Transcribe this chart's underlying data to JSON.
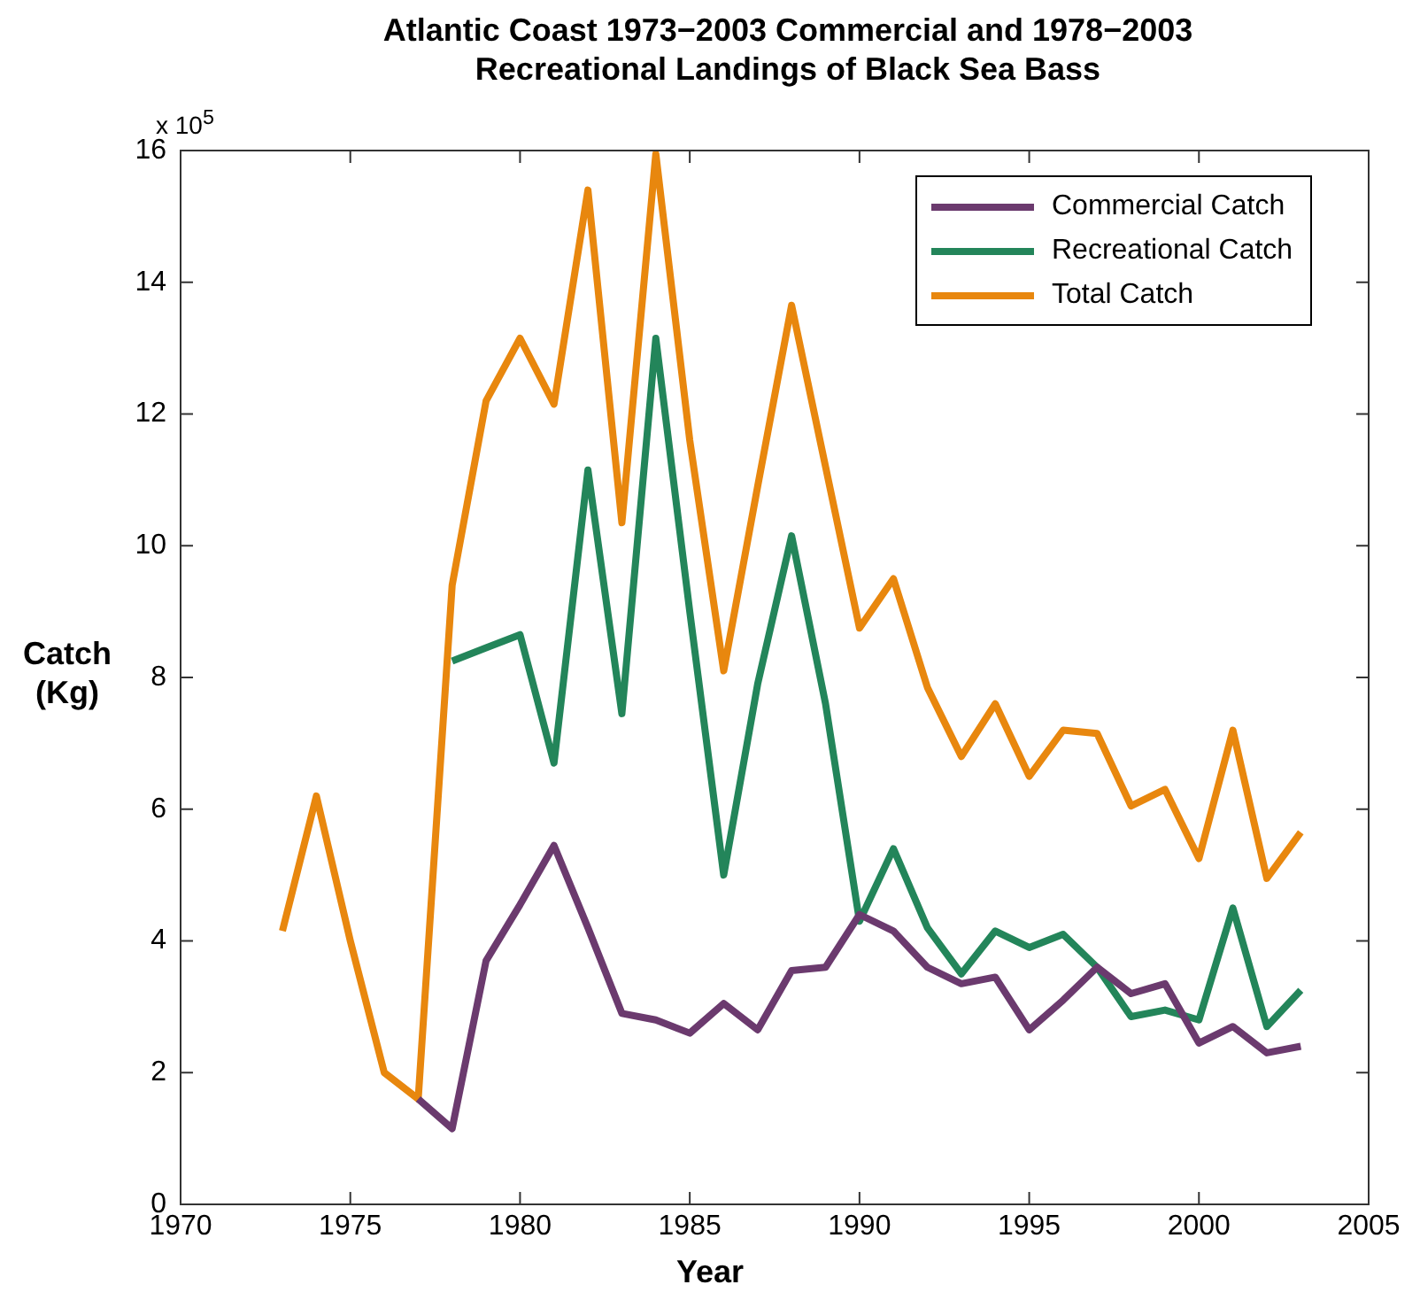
{
  "chart_data": {
    "type": "line",
    "title": "Atlantic Coast 1973−2003 Commercial and 1978−2003 Recreational Landings of Black Sea Bass",
    "xlabel": "Year",
    "ylabel": "Catch (Kg)",
    "annotations": [
      "x 10$^{5}$"
    ],
    "xlim": [
      1970,
      2005
    ],
    "xticks": [
      1970,
      1975,
      1980,
      1985,
      1990,
      1995,
      2000,
      2005
    ],
    "ylim": [
      0,
      16
    ],
    "yticks": [
      0,
      2,
      4,
      6,
      8,
      10,
      12,
      14,
      16
    ],
    "grid": false,
    "legend": "top right",
    "line_style": "solid",
    "marker": "none",
    "series": [
      {
        "name": "Commercial Catch",
        "color": "#6b3a6e",
        "x": [
          1977,
          1978,
          1979,
          1980,
          1981,
          1982,
          1983,
          1984,
          1985,
          1986,
          1987,
          1988,
          1989,
          1990,
          1991,
          1992,
          1993,
          1994,
          1995,
          1996,
          1997,
          1998,
          1999,
          2000,
          2001,
          2002,
          2003
        ],
        "values": [
          1.6,
          1.15,
          3.7,
          4.55,
          5.45,
          4.2,
          2.9,
          2.8,
          2.6,
          3.05,
          2.65,
          3.55,
          3.6,
          4.4,
          4.15,
          3.6,
          3.35,
          3.45,
          2.65,
          3.1,
          3.6,
          3.2,
          3.35,
          2.45,
          2.7,
          2.3,
          2.4
        ]
      },
      {
        "name": "Recreational Catch",
        "color": "#23855a",
        "x": [
          1978,
          1979,
          1980,
          1981,
          1982,
          1983,
          1984,
          1985,
          1986,
          1987,
          1988,
          1989,
          1990,
          1991,
          1992,
          1993,
          1994,
          1995,
          1996,
          1997,
          1998,
          1999,
          2000,
          2001,
          2002,
          2003
        ],
        "values": [
          8.25,
          8.45,
          8.65,
          6.7,
          11.15,
          7.45,
          13.15,
          9.0,
          5.0,
          7.9,
          10.15,
          7.6,
          4.3,
          5.4,
          4.2,
          3.5,
          4.15,
          3.9,
          4.1,
          3.6,
          2.85,
          2.95,
          2.8,
          4.5,
          2.7,
          3.25
        ]
      },
      {
        "name": "Total Catch",
        "color": "#e8870e",
        "x": [
          1973,
          1974,
          1975,
          1976,
          1977,
          1978,
          1979,
          1980,
          1981,
          1982,
          1983,
          1984,
          1985,
          1986,
          1987,
          1988,
          1989,
          1990,
          1991,
          1992,
          1993,
          1994,
          1995,
          1996,
          1997,
          1998,
          1999,
          2000,
          2001,
          2002,
          2003
        ],
        "values": [
          4.15,
          6.2,
          4.0,
          2.0,
          1.6,
          9.4,
          12.2,
          13.15,
          12.15,
          15.4,
          10.35,
          15.95,
          11.6,
          8.1,
          10.9,
          13.65,
          11.2,
          8.75,
          9.5,
          7.85,
          6.8,
          7.6,
          6.5,
          7.2,
          7.15,
          6.05,
          6.3,
          5.25,
          7.2,
          4.95,
          5.65
        ]
      }
    ]
  }
}
